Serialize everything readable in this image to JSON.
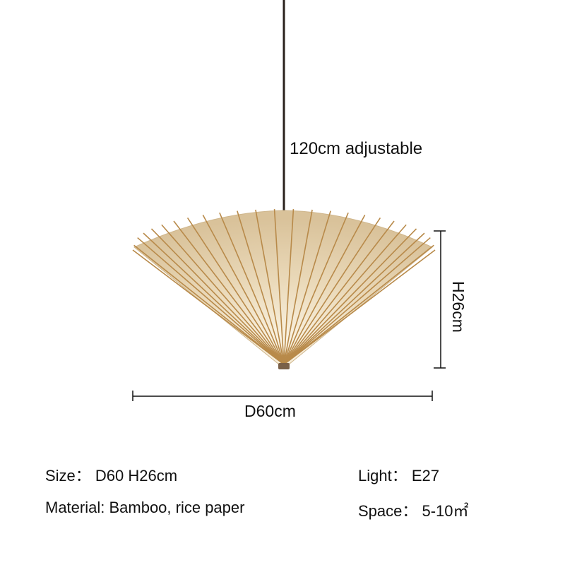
{
  "cord_label": "120cm adjustable",
  "height_label": "H26cm",
  "diameter_label": "D60cm",
  "specs": {
    "size": "Size：  D60 H26cm",
    "material": "Material: Bamboo, rice paper",
    "light": "Light：   E27",
    "space": "Space：  5-10㎡"
  },
  "colors": {
    "paper": "#e9d8b8",
    "rib": "#b88a4a",
    "cord": "#2a211c"
  }
}
